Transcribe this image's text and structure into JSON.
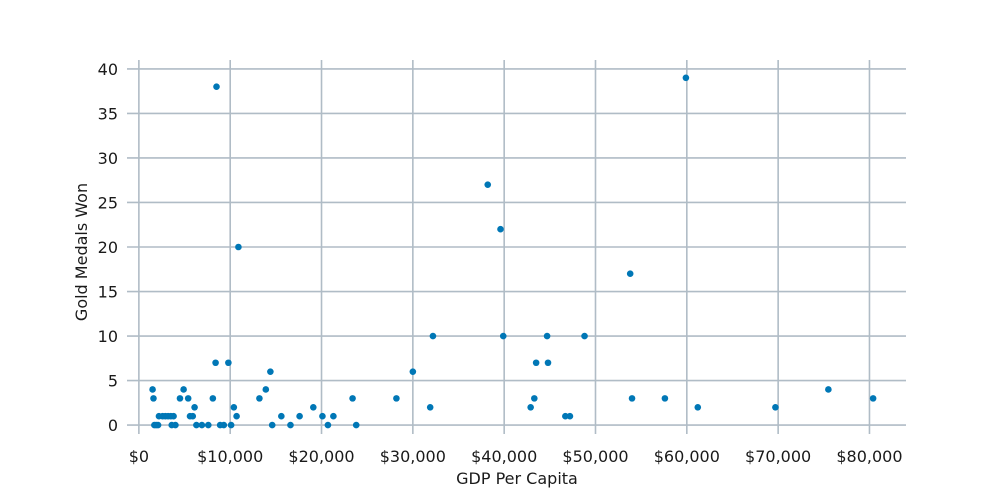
{
  "chart_data": {
    "type": "scatter",
    "title": "",
    "xlabel": "GDP Per Capita",
    "ylabel": "Gold Medals Won",
    "xlim": [
      -1300,
      84000
    ],
    "ylim": [
      -1,
      41
    ],
    "x_ticks": [
      0,
      10000,
      20000,
      30000,
      40000,
      50000,
      60000,
      70000,
      80000
    ],
    "x_tick_labels": [
      "$0",
      "$10,000",
      "$20,000",
      "$30,000",
      "$40,000",
      "$50,000",
      "$60,000",
      "$70,000",
      "$80,000"
    ],
    "y_ticks": [
      0,
      5,
      10,
      15,
      20,
      25,
      30,
      35,
      40
    ],
    "y_tick_labels": [
      "0",
      "5",
      "10",
      "15",
      "20",
      "25",
      "30",
      "35",
      "40"
    ],
    "grid": true,
    "legend": "none",
    "marker_color": "#0077b6",
    "grid_color": "#b0bcc6",
    "points": [
      {
        "x": 1500,
        "y": 4
      },
      {
        "x": 1600,
        "y": 3
      },
      {
        "x": 1700,
        "y": 0
      },
      {
        "x": 1900,
        "y": 0
      },
      {
        "x": 2100,
        "y": 0
      },
      {
        "x": 2200,
        "y": 1
      },
      {
        "x": 2600,
        "y": 1
      },
      {
        "x": 2900,
        "y": 1
      },
      {
        "x": 3200,
        "y": 1
      },
      {
        "x": 3500,
        "y": 1
      },
      {
        "x": 3600,
        "y": 0
      },
      {
        "x": 3800,
        "y": 1
      },
      {
        "x": 4000,
        "y": 0
      },
      {
        "x": 4500,
        "y": 3
      },
      {
        "x": 4900,
        "y": 4
      },
      {
        "x": 5400,
        "y": 3
      },
      {
        "x": 5600,
        "y": 1
      },
      {
        "x": 5900,
        "y": 1
      },
      {
        "x": 6100,
        "y": 2
      },
      {
        "x": 6300,
        "y": 0
      },
      {
        "x": 6900,
        "y": 0
      },
      {
        "x": 7600,
        "y": 0
      },
      {
        "x": 8100,
        "y": 3
      },
      {
        "x": 8400,
        "y": 7
      },
      {
        "x": 8500,
        "y": 38
      },
      {
        "x": 8900,
        "y": 0
      },
      {
        "x": 9300,
        "y": 0
      },
      {
        "x": 9800,
        "y": 7
      },
      {
        "x": 10100,
        "y": 0
      },
      {
        "x": 10400,
        "y": 2
      },
      {
        "x": 10700,
        "y": 1
      },
      {
        "x": 10900,
        "y": 20
      },
      {
        "x": 13200,
        "y": 3
      },
      {
        "x": 13900,
        "y": 4
      },
      {
        "x": 14400,
        "y": 6
      },
      {
        "x": 14600,
        "y": 0
      },
      {
        "x": 15600,
        "y": 1
      },
      {
        "x": 16600,
        "y": 0
      },
      {
        "x": 17600,
        "y": 1
      },
      {
        "x": 19100,
        "y": 2
      },
      {
        "x": 20100,
        "y": 1
      },
      {
        "x": 20700,
        "y": 0
      },
      {
        "x": 21300,
        "y": 1
      },
      {
        "x": 23400,
        "y": 3
      },
      {
        "x": 23800,
        "y": 0
      },
      {
        "x": 28200,
        "y": 3
      },
      {
        "x": 30000,
        "y": 6
      },
      {
        "x": 31900,
        "y": 2
      },
      {
        "x": 32200,
        "y": 10
      },
      {
        "x": 38200,
        "y": 27
      },
      {
        "x": 39600,
        "y": 22
      },
      {
        "x": 39900,
        "y": 10
      },
      {
        "x": 42900,
        "y": 2
      },
      {
        "x": 43300,
        "y": 3
      },
      {
        "x": 43500,
        "y": 7
      },
      {
        "x": 44700,
        "y": 10
      },
      {
        "x": 44800,
        "y": 7
      },
      {
        "x": 46700,
        "y": 1
      },
      {
        "x": 47200,
        "y": 1
      },
      {
        "x": 48800,
        "y": 10
      },
      {
        "x": 53800,
        "y": 17
      },
      {
        "x": 54000,
        "y": 3
      },
      {
        "x": 57600,
        "y": 3
      },
      {
        "x": 59900,
        "y": 39
      },
      {
        "x": 61200,
        "y": 2
      },
      {
        "x": 69700,
        "y": 2
      },
      {
        "x": 75500,
        "y": 4
      },
      {
        "x": 80400,
        "y": 3
      }
    ]
  }
}
